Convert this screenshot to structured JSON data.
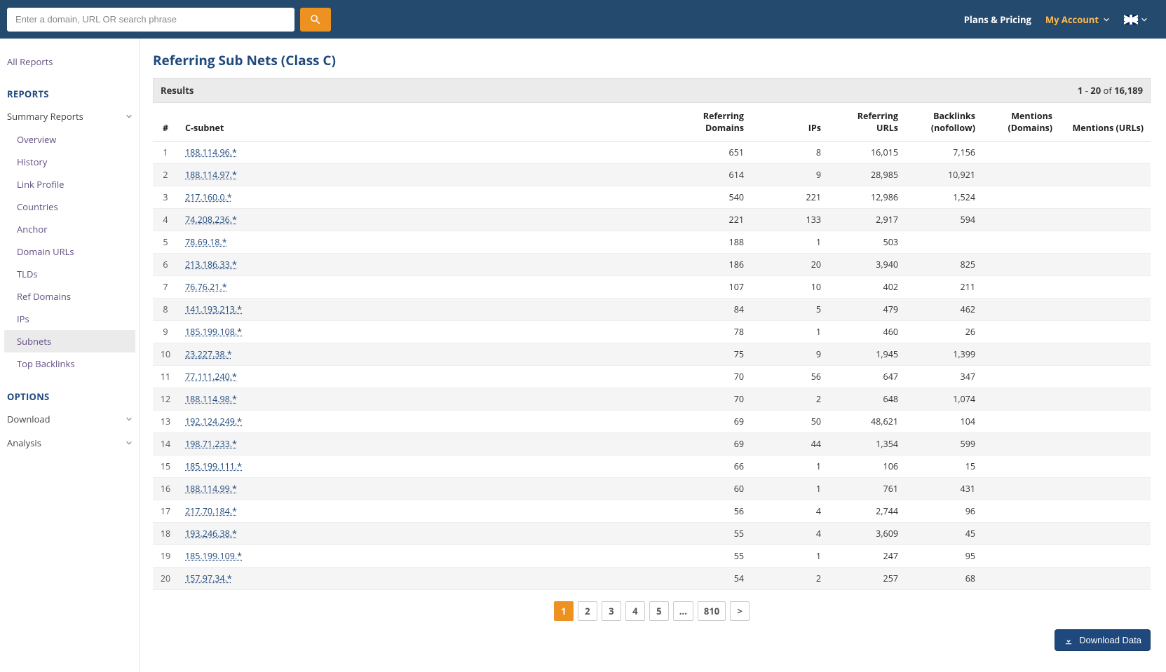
{
  "header": {
    "search_placeholder": "Enter a domain, URL OR search phrase",
    "plans_pricing": "Plans & Pricing",
    "my_account": "My Account"
  },
  "sidebar": {
    "all_reports": "All Reports",
    "reports_head": "REPORTS",
    "summary_reports": "Summary Reports",
    "items": [
      "Overview",
      "History",
      "Link Profile",
      "Countries",
      "Anchor",
      "Domain URLs",
      "TLDs",
      "Ref Domains",
      "IPs",
      "Subnets",
      "Top Backlinks"
    ],
    "active_index": 9,
    "options_head": "OPTIONS",
    "download": "Download",
    "analysis": "Analysis"
  },
  "page": {
    "title": "Referring Sub Nets (Class C)",
    "results_label": "Results",
    "range_from": "1",
    "range_to": "20",
    "range_of": "of",
    "total": "16,189"
  },
  "table": {
    "columns": {
      "idx": "#",
      "csubnet": "C-subnet",
      "ref_domains": "Referring Domains",
      "ips": "IPs",
      "ref_urls": "Referring URLs",
      "backlinks_nf": "Backlinks (nofollow)",
      "mentions_dom": "Mentions (Domains)",
      "mentions_urls": "Mentions (URLs)"
    },
    "rows": [
      {
        "n": 1,
        "sub": "188.114.96.*",
        "rd": "651",
        "ips": "8",
        "rurls": "16,015",
        "bnf": "7,156",
        "md": "",
        "mu": ""
      },
      {
        "n": 2,
        "sub": "188.114.97.*",
        "rd": "614",
        "ips": "9",
        "rurls": "28,985",
        "bnf": "10,921",
        "md": "",
        "mu": ""
      },
      {
        "n": 3,
        "sub": "217.160.0.*",
        "rd": "540",
        "ips": "221",
        "rurls": "12,986",
        "bnf": "1,524",
        "md": "",
        "mu": ""
      },
      {
        "n": 4,
        "sub": "74.208.236.*",
        "rd": "221",
        "ips": "133",
        "rurls": "2,917",
        "bnf": "594",
        "md": "",
        "mu": ""
      },
      {
        "n": 5,
        "sub": "78.69.18.*",
        "rd": "188",
        "ips": "1",
        "rurls": "503",
        "bnf": "",
        "md": "",
        "mu": ""
      },
      {
        "n": 6,
        "sub": "213.186.33.*",
        "rd": "186",
        "ips": "20",
        "rurls": "3,940",
        "bnf": "825",
        "md": "",
        "mu": ""
      },
      {
        "n": 7,
        "sub": "76.76.21.*",
        "rd": "107",
        "ips": "10",
        "rurls": "402",
        "bnf": "211",
        "md": "",
        "mu": ""
      },
      {
        "n": 8,
        "sub": "141.193.213.*",
        "rd": "84",
        "ips": "5",
        "rurls": "479",
        "bnf": "462",
        "md": "",
        "mu": ""
      },
      {
        "n": 9,
        "sub": "185.199.108.*",
        "rd": "78",
        "ips": "1",
        "rurls": "460",
        "bnf": "26",
        "md": "",
        "mu": ""
      },
      {
        "n": 10,
        "sub": "23.227.38.*",
        "rd": "75",
        "ips": "9",
        "rurls": "1,945",
        "bnf": "1,399",
        "md": "",
        "mu": ""
      },
      {
        "n": 11,
        "sub": "77.111.240.*",
        "rd": "70",
        "ips": "56",
        "rurls": "647",
        "bnf": "347",
        "md": "",
        "mu": ""
      },
      {
        "n": 12,
        "sub": "188.114.98.*",
        "rd": "70",
        "ips": "2",
        "rurls": "648",
        "bnf": "1,074",
        "md": "",
        "mu": ""
      },
      {
        "n": 13,
        "sub": "192.124.249.*",
        "rd": "69",
        "ips": "50",
        "rurls": "48,621",
        "bnf": "104",
        "md": "",
        "mu": ""
      },
      {
        "n": 14,
        "sub": "198.71.233.*",
        "rd": "69",
        "ips": "44",
        "rurls": "1,354",
        "bnf": "599",
        "md": "",
        "mu": ""
      },
      {
        "n": 15,
        "sub": "185.199.111.*",
        "rd": "66",
        "ips": "1",
        "rurls": "106",
        "bnf": "15",
        "md": "",
        "mu": ""
      },
      {
        "n": 16,
        "sub": "188.114.99.*",
        "rd": "60",
        "ips": "1",
        "rurls": "761",
        "bnf": "431",
        "md": "",
        "mu": ""
      },
      {
        "n": 17,
        "sub": "217.70.184.*",
        "rd": "56",
        "ips": "4",
        "rurls": "2,744",
        "bnf": "96",
        "md": "",
        "mu": ""
      },
      {
        "n": 18,
        "sub": "193.246.38.*",
        "rd": "55",
        "ips": "4",
        "rurls": "3,609",
        "bnf": "45",
        "md": "",
        "mu": ""
      },
      {
        "n": 19,
        "sub": "185.199.109.*",
        "rd": "55",
        "ips": "1",
        "rurls": "247",
        "bnf": "95",
        "md": "",
        "mu": ""
      },
      {
        "n": 20,
        "sub": "157.97.34.*",
        "rd": "54",
        "ips": "2",
        "rurls": "257",
        "bnf": "68",
        "md": "",
        "mu": ""
      }
    ]
  },
  "pager": {
    "pages": [
      "1",
      "2",
      "3",
      "4",
      "5",
      "...",
      "810",
      ">"
    ],
    "active": 0
  },
  "download_btn": "Download Data"
}
